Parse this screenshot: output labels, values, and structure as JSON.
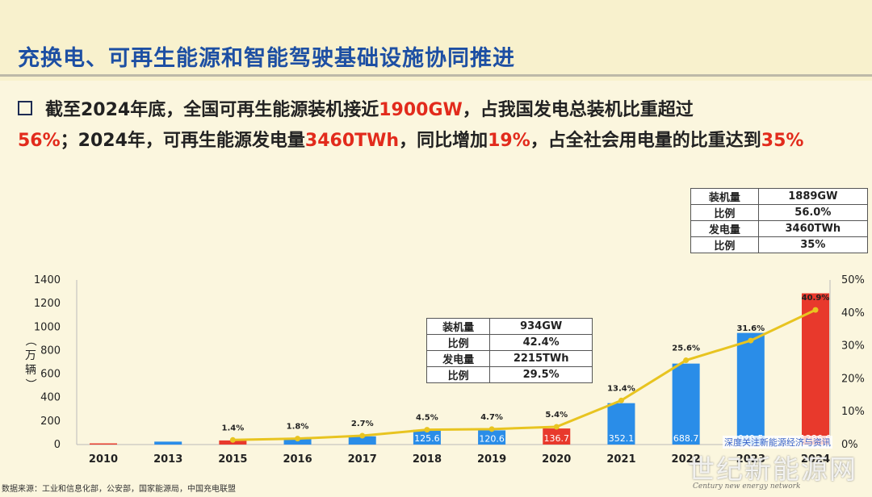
{
  "title": "充换电、可再生能源和智能驾驶基础设施协同推进",
  "bullet": {
    "t1": "截至2024年底，全国可再生能源装机接近",
    "r1": "1900GW",
    "t2": "，占我国发电总装机比重超过",
    "r2": "56%",
    "t3": "；2024年，可再生能源发电量",
    "r3": "3460TWh",
    "t4": "，同比增加",
    "r4": "19%",
    "t5": "，占全社会用电量的比重达到",
    "r5": "35%"
  },
  "table_2024": [
    {
      "k": "装机量",
      "v": "1889GW"
    },
    {
      "k": "比例",
      "v": "56.0%"
    },
    {
      "k": "发电量",
      "v": "3460TWh"
    },
    {
      "k": "比例",
      "v": "35%"
    }
  ],
  "table_2020": [
    {
      "k": "装机量",
      "v": "934GW"
    },
    {
      "k": "比例",
      "v": "42.4%"
    },
    {
      "k": "发电量",
      "v": "2215TWh"
    },
    {
      "k": "比例",
      "v": "29.5%"
    }
  ],
  "chart_data": {
    "type": "bar",
    "categories": [
      "2010",
      "2013",
      "2015",
      "2016",
      "2017",
      "2018",
      "2019",
      "2020",
      "2021",
      "2022",
      "2023",
      "2024"
    ],
    "series": [
      {
        "values": [
          10,
          25,
          35,
          55,
          70,
          125.6,
          120.6,
          136.7,
          352.1,
          688.7,
          949.5,
          1286.6
        ],
        "labels": [
          "",
          "",
          "",
          "",
          "",
          "125.6",
          "120.6",
          "136.7",
          "352.1",
          "688.7",
          "949.5",
          "1286.6"
        ],
        "colors": [
          "#e8392c",
          "#2a8de8",
          "#e8392c",
          "#2a8de8",
          "#2a8de8",
          "#2a8de8",
          "#2a8de8",
          "#e8392c",
          "#2a8de8",
          "#2a8de8",
          "#2a8de8",
          "#e8392c"
        ]
      },
      {
        "type": "line",
        "axis": "right",
        "values": [
          null,
          null,
          1.4,
          1.8,
          2.7,
          4.5,
          4.7,
          5.4,
          13.4,
          25.6,
          31.6,
          40.9
        ],
        "labels": [
          "",
          "",
          "1.4%",
          "1.8%",
          "2.7%",
          "4.5%",
          "4.7%",
          "5.4%",
          "13.4%",
          "25.6%",
          "31.6%",
          "40.9%"
        ],
        "color": "#e8c420"
      }
    ],
    "ylabel": "（万辆）",
    "ylim": [
      0,
      1400
    ],
    "yticks": [
      "0",
      "200",
      "400",
      "600",
      "800",
      "1000",
      "1200",
      "1400"
    ],
    "y2lim": [
      0,
      50
    ],
    "y2ticks": [
      "0%",
      "10%",
      "20%",
      "30%",
      "40%",
      "50%"
    ]
  },
  "source": "数据来源：工业和信息化部，公安部，国家能源局，中国充电联盟",
  "watermark": {
    "top": "深度关注新能源经济与资讯",
    "main": "世纪新能源网",
    "sub": "Century new energy network"
  }
}
